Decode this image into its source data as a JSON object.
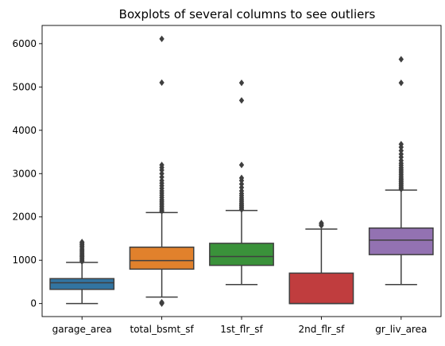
{
  "chart_data": {
    "type": "boxplot",
    "title": "Boxplots of several columns to see outliers",
    "xlabel": "",
    "ylabel": "",
    "ylim": [
      -300,
      6420
    ],
    "yticks": [
      0,
      1000,
      2000,
      3000,
      4000,
      5000,
      6000
    ],
    "grid": false,
    "categories": [
      "garage_area",
      "total_bsmt_sf",
      "1st_flr_sf",
      "2nd_flr_sf",
      "gr_liv_area"
    ],
    "colors": [
      "#3274a1",
      "#e1812c",
      "#3a923a",
      "#c03d3e",
      "#9372b2"
    ],
    "boxes": [
      {
        "name": "garage_area",
        "q1": 328,
        "median": 480,
        "q3": 576,
        "whisker_low": 0,
        "whisker_high": 950,
        "outliers": [
          970,
          1000,
          1030,
          1060,
          1090,
          1110,
          1140,
          1170,
          1200,
          1230,
          1260,
          1300,
          1330,
          1360,
          1390,
          1420
        ]
      },
      {
        "name": "total_bsmt_sf",
        "q1": 795,
        "median": 991,
        "q3": 1302,
        "whisker_low": 150,
        "whisker_high": 2100,
        "outliers": [
          0,
          15,
          30,
          2130,
          2160,
          2200,
          2240,
          2280,
          2320,
          2360,
          2400,
          2450,
          2500,
          2550,
          2600,
          2660,
          2720,
          2780,
          2840,
          2920,
          3000,
          3080,
          3140,
          3200,
          5100,
          6110
        ]
      },
      {
        "name": "1st_flr_sf",
        "q1": 882,
        "median": 1087,
        "q3": 1391,
        "whisker_low": 438,
        "whisker_high": 2150,
        "outliers": [
          2170,
          2200,
          2230,
          2260,
          2290,
          2320,
          2360,
          2400,
          2440,
          2490,
          2540,
          2600,
          2680,
          2760,
          2840,
          2900,
          3200,
          4690,
          5095
        ]
      },
      {
        "name": "2nd_flr_sf",
        "q1": 0,
        "median": 0,
        "q3": 703,
        "whisker_low": 0,
        "whisker_high": 1720,
        "outliers": [
          1800,
          1830,
          1860
        ]
      },
      {
        "name": "gr_liv_area",
        "q1": 1130,
        "median": 1464,
        "q3": 1743,
        "whisker_low": 438,
        "whisker_high": 2620,
        "outliers": [
          2640,
          2660,
          2690,
          2720,
          2750,
          2780,
          2810,
          2840,
          2870,
          2900,
          2940,
          2980,
          3020,
          3060,
          3100,
          3140,
          3190,
          3240,
          3300,
          3380,
          3450,
          3530,
          3610,
          3680,
          5095,
          5640
        ]
      }
    ]
  }
}
